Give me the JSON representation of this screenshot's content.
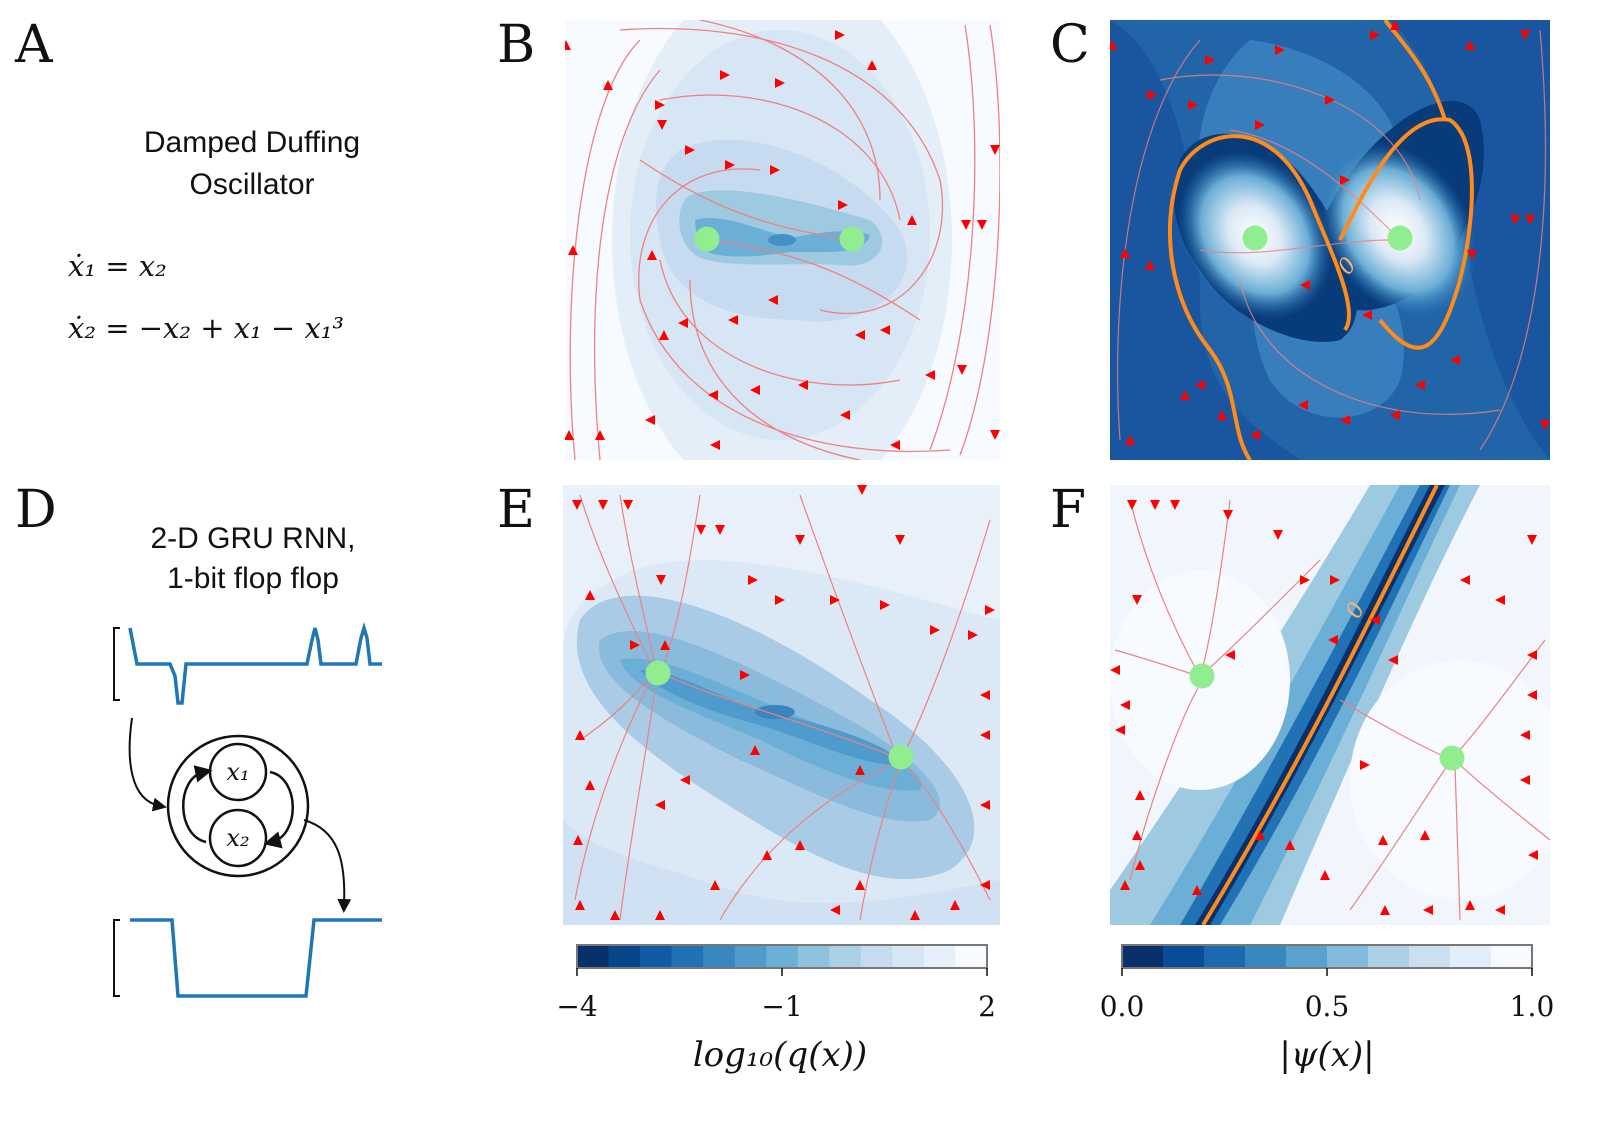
{
  "panel_labels": [
    "A",
    "B",
    "C",
    "D",
    "E",
    "F"
  ],
  "panel_a": {
    "title_line1": "Damped Duffing",
    "title_line2": "Oscillator",
    "eq1": "ẋ₁ = x₂",
    "eq2": "ẋ₂ = −x₂ + x₁ − x₁³"
  },
  "panel_d": {
    "title_line1": "2-D GRU RNN,",
    "title_line2": "1-bit flop flop",
    "node1": "x₁",
    "node2": "x₂"
  },
  "colors": {
    "flow_line": "#f08080",
    "arrow": "#ff0000",
    "fixed_point": "#90ee90",
    "zero_contour": "#ff8c1a",
    "signal": "#1f77b4"
  },
  "chart_data": [
    {
      "panel": "B",
      "type": "heatmap",
      "description_field": "log10 q(x) contours with flow streamlines",
      "fixed_points": [
        {
          "x": -0.7,
          "y": 0.05
        },
        {
          "x": 0.7,
          "y": 0.05
        }
      ],
      "saddle": {
        "x": 0.0,
        "y": 0.05
      }
    },
    {
      "panel": "C",
      "type": "heatmap",
      "fixed_points": [
        {
          "x": -0.7,
          "y": 0.05
        },
        {
          "x": 0.7,
          "y": 0.05
        }
      ],
      "contour_labels": [
        "0"
      ]
    },
    {
      "panel": "E",
      "type": "heatmap",
      "fixed_points": [
        {
          "x": -0.8,
          "y": 0.4
        },
        {
          "x": 0.6,
          "y": -0.3
        }
      ]
    },
    {
      "panel": "F",
      "type": "heatmap",
      "fixed_points": [
        {
          "x": -0.55,
          "y": 0.35
        },
        {
          "x": 0.6,
          "y": -0.3
        }
      ],
      "contour_labels": [
        "0"
      ]
    },
    {
      "panel": "E-colorbar",
      "type": "heatmap",
      "label": "log₁₀(q(x))",
      "ticks": [
        "−4",
        "−1",
        "2"
      ],
      "range": [
        -4,
        2
      ],
      "levels": 13
    },
    {
      "panel": "F-colorbar",
      "type": "heatmap",
      "label": "|ψ(x)|",
      "ticks": [
        "0.0",
        "0.5",
        "1.0"
      ],
      "range": [
        0,
        1
      ],
      "levels": 10
    }
  ]
}
